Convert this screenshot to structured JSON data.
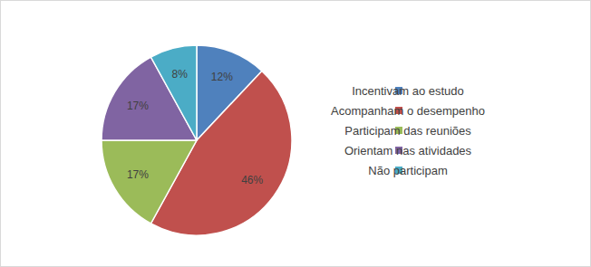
{
  "chart_data": {
    "type": "pie",
    "categories": [
      "Incentivam ao estudo",
      "Acompanham o desempenho",
      "Participam das reuniões",
      "Orientam nas atividades",
      "Não participam"
    ],
    "values": [
      12,
      46,
      17,
      17,
      8
    ],
    "value_labels": [
      "12%",
      "46%",
      "17%",
      "17%",
      "8%"
    ],
    "colors": [
      "#4f81bd",
      "#c0504d",
      "#9bbb59",
      "#8064a2",
      "#4bacc6"
    ],
    "data_labels": true,
    "legend": "right"
  }
}
